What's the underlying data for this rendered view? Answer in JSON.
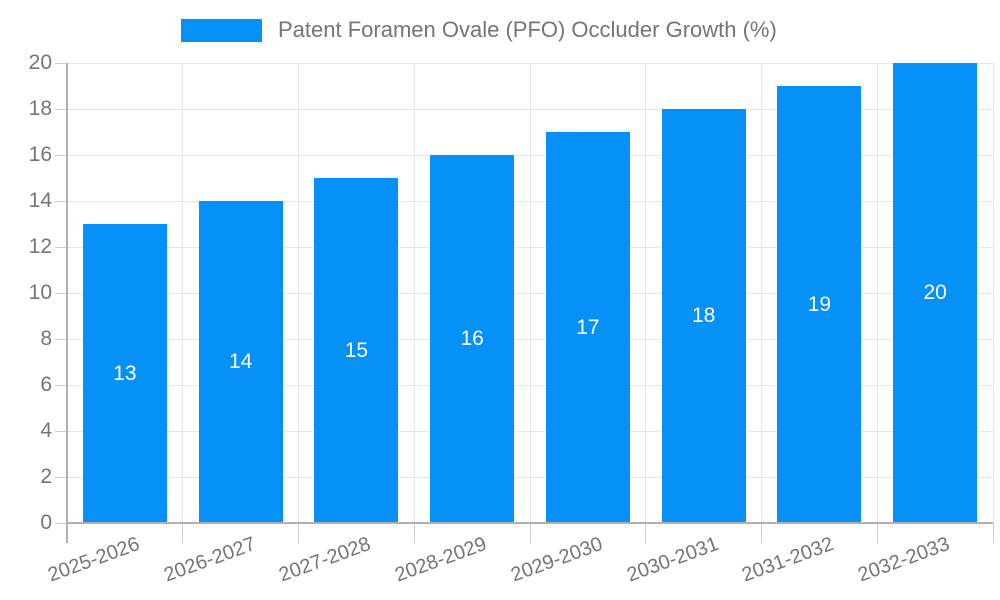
{
  "chart_data": {
    "type": "bar",
    "title": "Patent Foramen Ovale (PFO) Occluder Growth (%)",
    "categories": [
      "2025-2026",
      "2026-2027",
      "2027-2028",
      "2028-2029",
      "2029-2030",
      "2030-2031",
      "2031-2032",
      "2032-2033"
    ],
    "values": [
      13,
      14,
      15,
      16,
      17,
      18,
      19,
      20
    ],
    "xlabel": "",
    "ylabel": "",
    "ylim": [
      0,
      20
    ],
    "ytick_step": 2,
    "yticks": [
      0,
      2,
      4,
      6,
      8,
      10,
      12,
      14,
      16,
      18,
      20
    ],
    "grid": true,
    "legend_position": "top-center",
    "x_label_rotation_deg": -20,
    "bar_value_labels_inside": true,
    "colors": {
      "bar": "#0691f8",
      "axis_text": "#757575",
      "bar_label": "#ffffff",
      "gridline": "#e6e6e6",
      "axis_line": "#b0b0b0",
      "tick": "#cccccc",
      "background": "#ffffff"
    }
  }
}
